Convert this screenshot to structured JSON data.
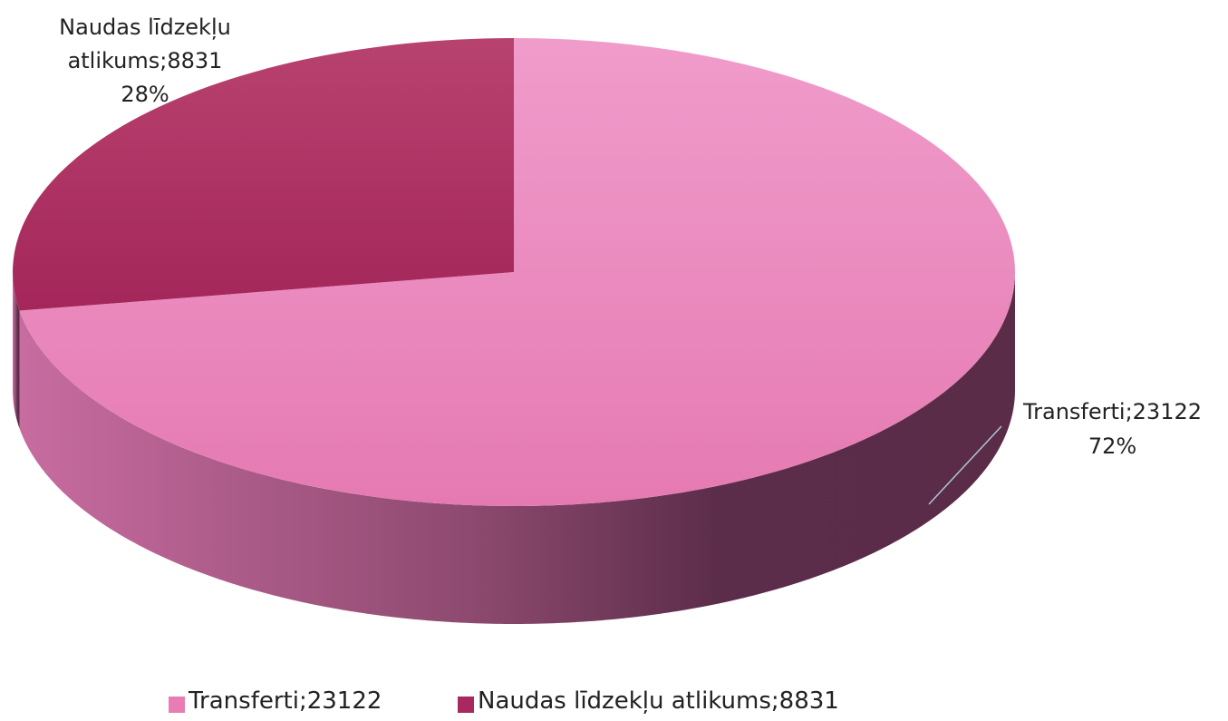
{
  "chart_data": {
    "type": "pie",
    "categories": [
      "Transferti;23122",
      "Naudas līdzekļu atlikums;8831"
    ],
    "values": [
      23122,
      8831
    ],
    "value_labels": [
      "72%",
      "28%"
    ],
    "colors": [
      "#e87db5",
      "#a8295e"
    ],
    "legend": "bottom"
  }
}
